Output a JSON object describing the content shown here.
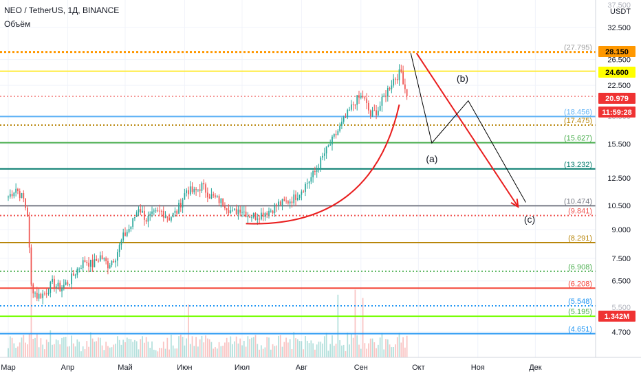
{
  "header": {
    "title": "NEO / TetherUS, 1Д, BINANCE",
    "volume_label": "Объём"
  },
  "colors": {
    "bg": "#ffffff",
    "up": "#26a69a",
    "down": "#ef5350",
    "axis_text": "#131722",
    "grid": "#f0f3fa",
    "annotation": "#e91e1e",
    "wave": "#000000"
  },
  "chart_data": {
    "type": "candlestick",
    "symbol": "NEO / TetherUS",
    "interval": "1Д",
    "exchange": "BINANCE",
    "volume_label": "Объём",
    "y_axis": {
      "scale": "log",
      "currency": "USDT",
      "range": [
        4.0,
        38.0
      ],
      "ticks": [
        "32.500",
        "26.500",
        "22.500",
        "15.500",
        "12.500",
        "10.500",
        "9.000",
        "7.500",
        "6.500",
        "4.700"
      ],
      "partial_ticks": [
        "37.500",
        "18.500",
        "5.500"
      ]
    },
    "x_axis": {
      "labels": [
        "Мар",
        "Апр",
        "Май",
        "Июн",
        "Июл",
        "Авг",
        "Сен",
        "Окт",
        "Ноя",
        "Дек"
      ],
      "start_date": "2020-03-01",
      "end_date": "2020-12-31"
    },
    "price_tags": [
      {
        "value": "28.150",
        "color": "#ff9800",
        "text_color": "#000000"
      },
      {
        "value": "24.600",
        "color": "#ffff00",
        "text_color": "#000000"
      },
      {
        "value": "20.979",
        "color": "#ef3232",
        "text_color": "#ffffff"
      },
      {
        "value": "11:59:28",
        "color": "#ef3232",
        "text_color": "#ffffff"
      },
      {
        "value": "1.342M",
        "color": "#ef3232",
        "text_color": "#ffffff"
      }
    ],
    "levels": [
      {
        "value": 27.795,
        "label": "(27.795)",
        "color": "#ff9800",
        "style": "dotted",
        "width": 3,
        "label_color": "#9e9e9e"
      },
      {
        "value": 24.6,
        "label": "",
        "color": "#ffeb3b",
        "style": "solid",
        "width": 2,
        "label_color": "#9e9e9e"
      },
      {
        "value": 20.979,
        "label": "",
        "color": "#ef5350",
        "style": "dotted",
        "width": 1,
        "label_color": "#ef5350"
      },
      {
        "value": 18.456,
        "label": "(18.456)",
        "color": "#64b5f6",
        "style": "solid",
        "width": 2,
        "label_color": "#64b5f6"
      },
      {
        "value": 17.475,
        "label": "(17.475)",
        "color": "#b8860b",
        "style": "dotted",
        "width": 2,
        "label_color": "#b8860b"
      },
      {
        "value": 15.627,
        "label": "(15.627)",
        "color": "#4caf50",
        "style": "solid",
        "width": 2,
        "label_color": "#4caf50"
      },
      {
        "value": 13.232,
        "label": "(13.232)",
        "color": "#00796b",
        "style": "solid",
        "width": 2,
        "label_color": "#00796b"
      },
      {
        "value": 10.474,
        "label": "(10.474)",
        "color": "#787b86",
        "style": "solid",
        "width": 2,
        "label_color": "#787b86"
      },
      {
        "value": 9.841,
        "label": "(9.841)",
        "color": "#ef5350",
        "style": "dotted",
        "width": 2,
        "label_color": "#ef5350"
      },
      {
        "value": 8.291,
        "label": "(8.291)",
        "color": "#b8860b",
        "style": "solid",
        "width": 2,
        "label_color": "#b8860b"
      },
      {
        "value": 6.908,
        "label": "(6.908)",
        "color": "#4caf50",
        "style": "dotted",
        "width": 2,
        "label_color": "#4caf50"
      },
      {
        "value": 6.208,
        "label": "(6.208)",
        "color": "#f44336",
        "style": "solid",
        "width": 2,
        "label_color": "#f44336"
      },
      {
        "value": 5.548,
        "label": "(5.548)",
        "color": "#2196f3",
        "style": "dotted",
        "width": 2,
        "label_color": "#2196f3"
      },
      {
        "value": 5.195,
        "label": "(5.195)",
        "color": "#76ff03",
        "style": "solid",
        "width": 2,
        "label_color": "#4caf50"
      },
      {
        "value": 4.651,
        "label": "(4.651)",
        "color": "#2196f3",
        "style": "solid",
        "width": 2,
        "label_color": "#2196f3"
      }
    ],
    "price_path": [
      [
        "2020-03-01",
        11.1
      ],
      [
        "2020-03-05",
        11.7
      ],
      [
        "2020-03-09",
        10.9
      ],
      [
        "2020-03-11",
        9.9
      ],
      [
        "2020-03-13",
        6.3
      ],
      [
        "2020-03-16",
        5.9
      ],
      [
        "2020-03-20",
        6.0
      ],
      [
        "2020-03-24",
        6.4
      ],
      [
        "2020-03-28",
        6.2
      ],
      [
        "2020-04-02",
        6.5
      ],
      [
        "2020-04-06",
        7.0
      ],
      [
        "2020-04-10",
        7.4
      ],
      [
        "2020-04-14",
        7.2
      ],
      [
        "2020-04-18",
        7.6
      ],
      [
        "2020-04-22",
        7.2
      ],
      [
        "2020-04-26",
        7.6
      ],
      [
        "2020-04-30",
        8.6
      ],
      [
        "2020-05-04",
        9.2
      ],
      [
        "2020-05-08",
        10.4
      ],
      [
        "2020-05-12",
        9.6
      ],
      [
        "2020-05-16",
        9.9
      ],
      [
        "2020-05-20",
        10.1
      ],
      [
        "2020-05-24",
        9.7
      ],
      [
        "2020-05-28",
        10.1
      ],
      [
        "2020-06-02",
        11.6
      ],
      [
        "2020-06-06",
        11.4
      ],
      [
        "2020-06-10",
        11.9
      ],
      [
        "2020-06-14",
        11.2
      ],
      [
        "2020-06-18",
        10.9
      ],
      [
        "2020-06-22",
        10.6
      ],
      [
        "2020-06-26",
        10.0
      ],
      [
        "2020-06-30",
        10.3
      ],
      [
        "2020-07-04",
        9.9
      ],
      [
        "2020-07-08",
        9.8
      ],
      [
        "2020-07-12",
        10.0
      ],
      [
        "2020-07-16",
        10.2
      ],
      [
        "2020-07-20",
        10.6
      ],
      [
        "2020-07-24",
        10.7
      ],
      [
        "2020-07-28",
        11.0
      ],
      [
        "2020-08-01",
        11.6
      ],
      [
        "2020-08-05",
        12.3
      ],
      [
        "2020-08-09",
        13.2
      ],
      [
        "2020-08-13",
        14.6
      ],
      [
        "2020-08-17",
        15.8
      ],
      [
        "2020-08-21",
        17.2
      ],
      [
        "2020-08-25",
        18.7
      ],
      [
        "2020-08-29",
        20.4
      ],
      [
        "2020-09-02",
        21.0
      ],
      [
        "2020-09-06",
        18.6
      ],
      [
        "2020-09-10",
        19.3
      ],
      [
        "2020-09-14",
        21.4
      ],
      [
        "2020-09-18",
        23.4
      ],
      [
        "2020-09-22",
        24.5
      ],
      [
        "2020-09-25",
        21.0
      ]
    ],
    "volume": {
      "unit": "M",
      "latest": "1.342M",
      "spikes": [
        {
          "date": "2020-03-13",
          "value": 4.6
        },
        {
          "date": "2020-06-03",
          "value": 3.2
        },
        {
          "date": "2020-08-20",
          "value": 3.8
        },
        {
          "date": "2020-08-29",
          "value": 4.1
        },
        {
          "date": "2020-09-02",
          "value": 3.6
        }
      ]
    },
    "annotations": {
      "cup_curve": {
        "color": "#e91e1e",
        "start": {
          "date": "2020-07-03",
          "price": 9.35
        },
        "end": {
          "date": "2020-09-21",
          "price": 19.9
        }
      },
      "red_projection": [
        {
          "date": "2020-09-30",
          "price": 27.6
        },
        {
          "date": "2020-11-22",
          "price": 10.4
        }
      ],
      "wave_path": [
        {
          "date": "2020-09-27",
          "price": 27.6
        },
        {
          "date": "2020-10-08",
          "price": 15.6
        },
        {
          "date": "2020-10-27",
          "price": 20.4
        },
        {
          "date": "2020-11-26",
          "price": 10.7
        }
      ],
      "wave_labels": [
        {
          "text": "(a)",
          "date": "2020-10-08",
          "price": 13.8
        },
        {
          "text": "(b)",
          "date": "2020-10-24",
          "price": 23.0
        },
        {
          "text": "(c)",
          "date": "2020-11-28",
          "price": 9.4
        }
      ]
    }
  }
}
